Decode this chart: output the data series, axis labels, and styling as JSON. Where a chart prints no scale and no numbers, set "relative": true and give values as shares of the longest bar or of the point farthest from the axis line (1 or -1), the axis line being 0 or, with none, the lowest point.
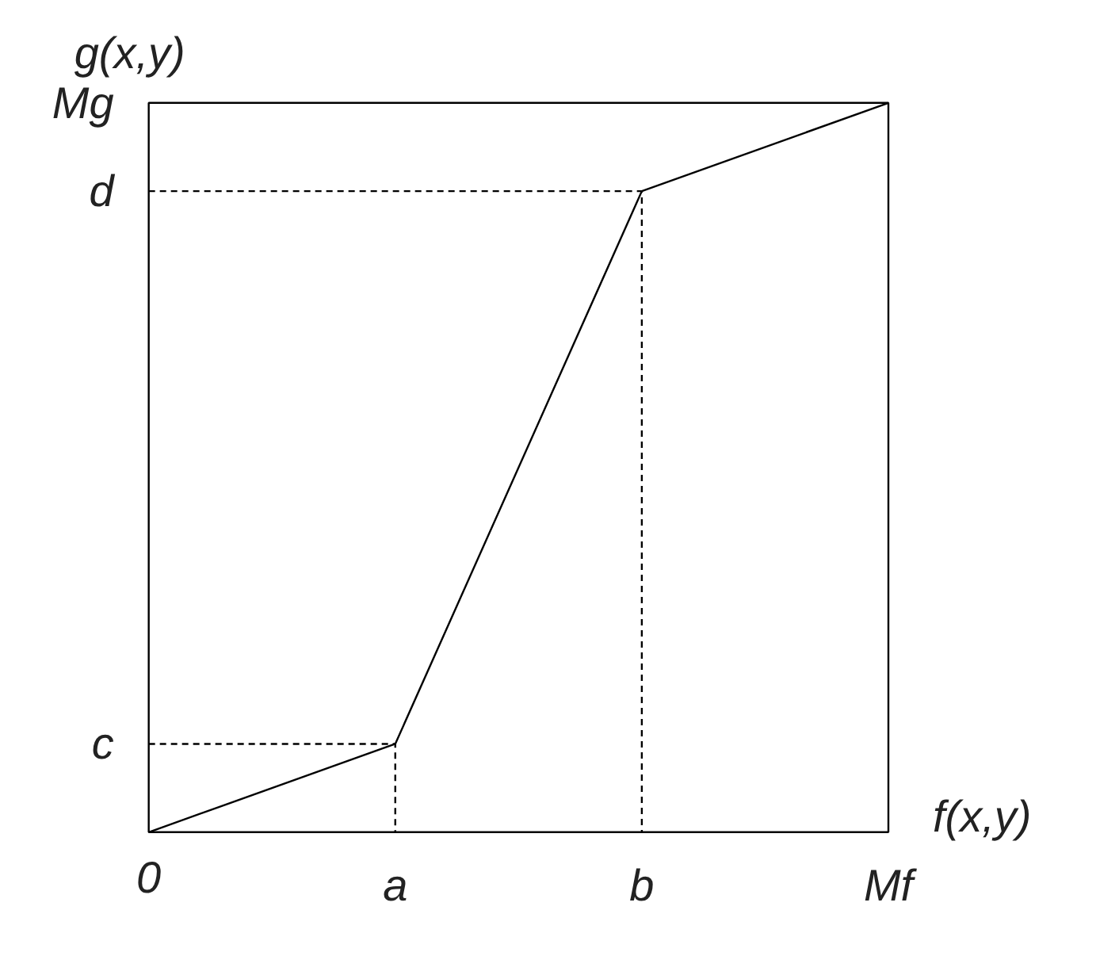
{
  "chart_data": {
    "type": "line",
    "relative": true,
    "xlabel": "f(x,y)",
    "ylabel": "g(x,y)",
    "categories": [
      "0",
      "a",
      "b",
      "Mf"
    ],
    "annotations": [
      "c",
      "d",
      "Mg"
    ],
    "series": [
      {
        "color": "#000000",
        "values": [
          0,
          0.121,
          0.879,
          1
        ]
      }
    ]
  }
}
